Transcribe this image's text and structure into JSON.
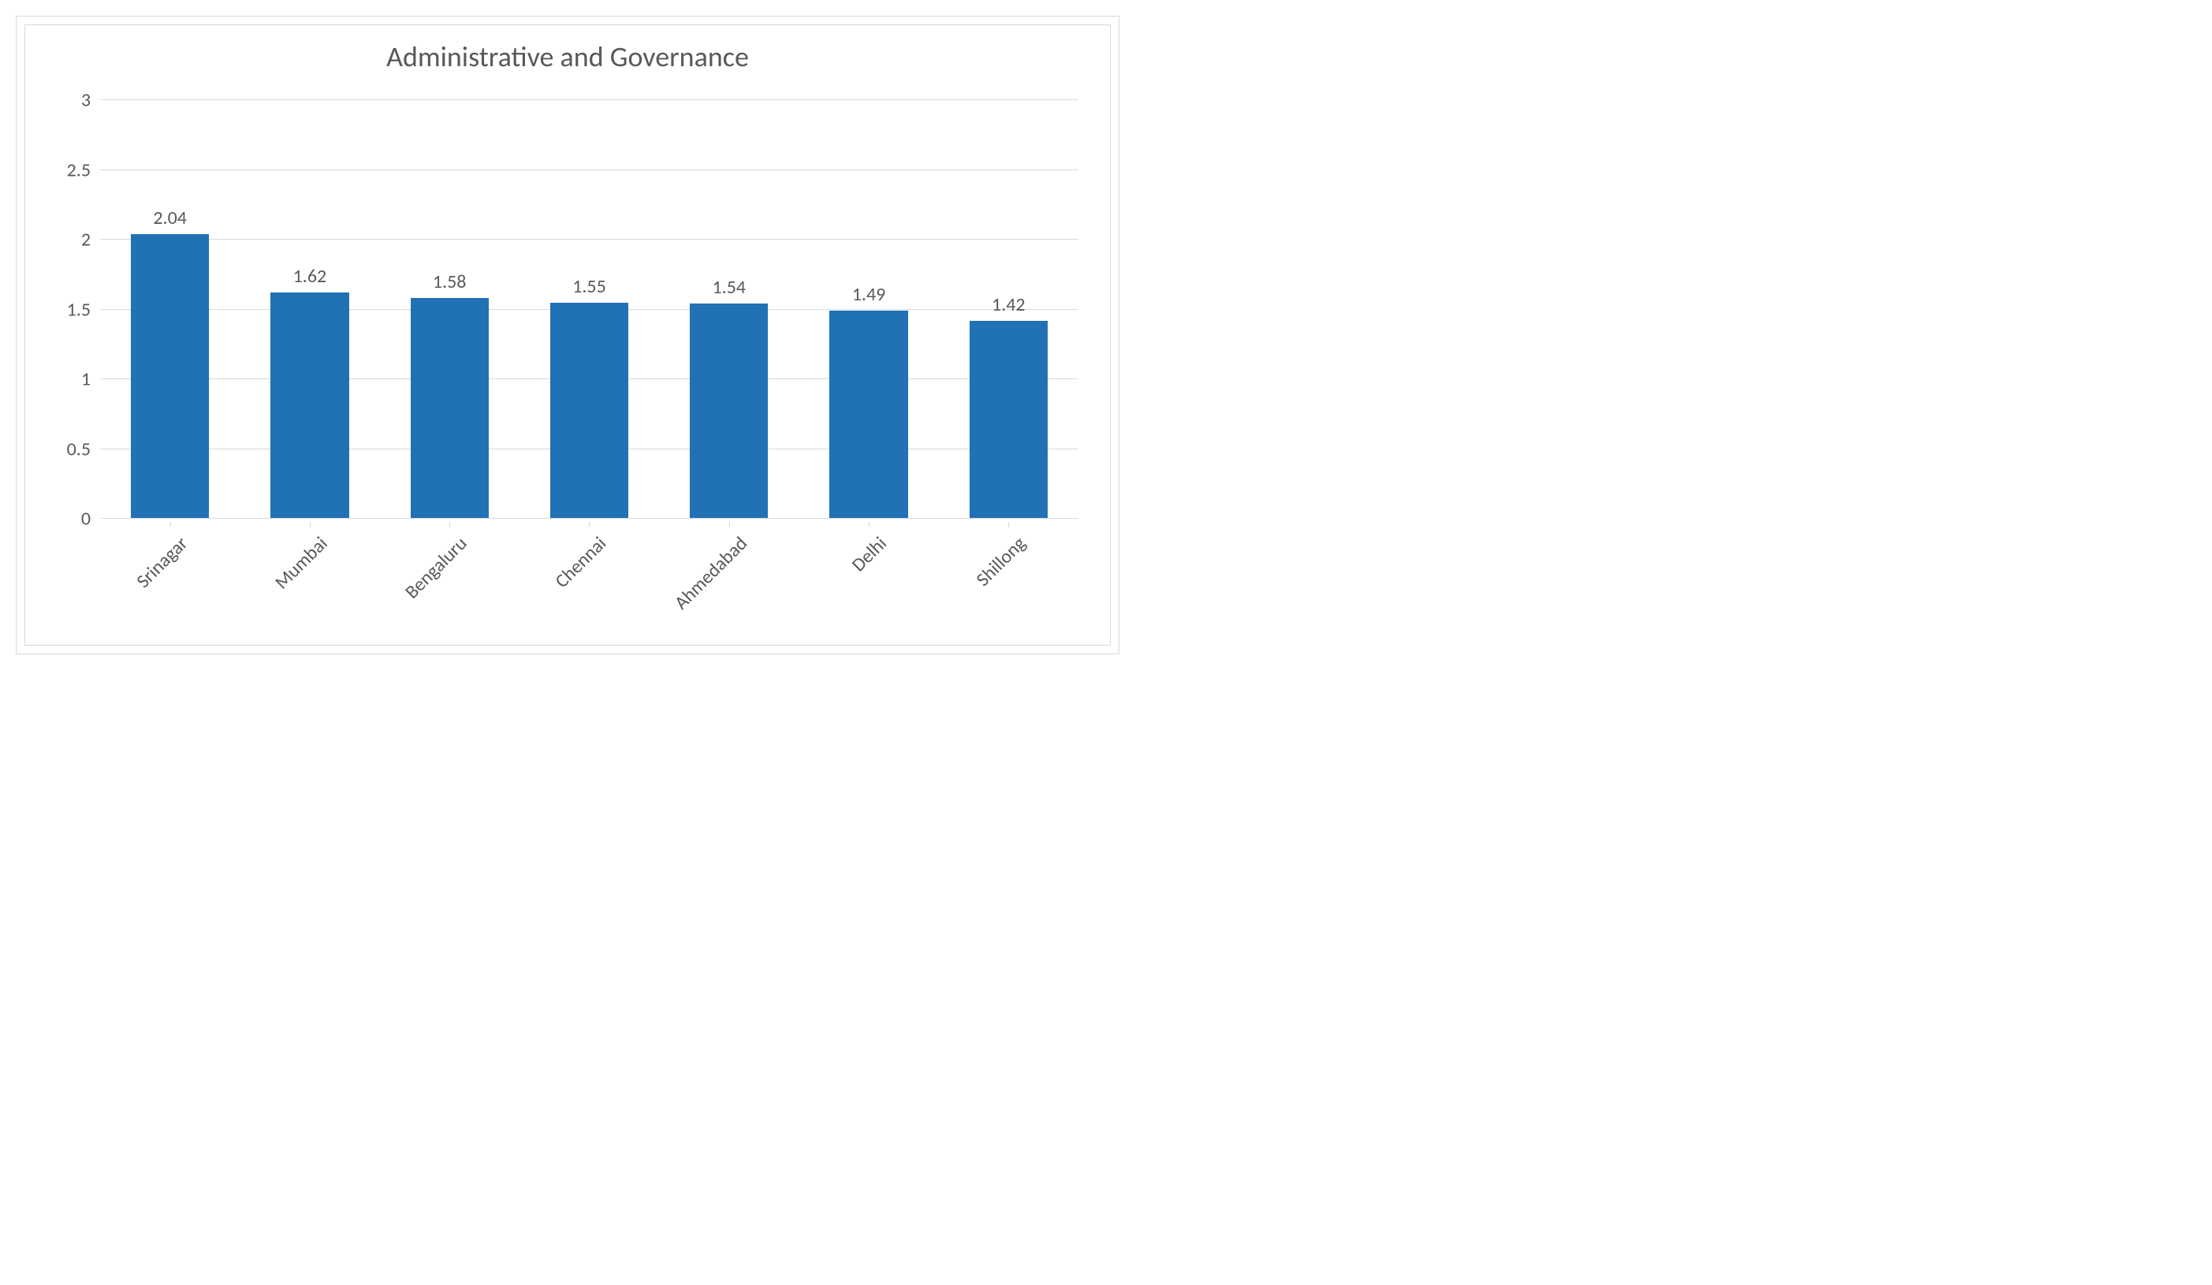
{
  "chart": {
    "type": "bar",
    "title": "Administrative and Governance",
    "title_fontsize": 36,
    "title_color": "#595959",
    "categories": [
      "Srinagar",
      "Mumbai",
      "Bengaluru",
      "Chennai",
      "Ahmedabad",
      "Delhi",
      "Shillong"
    ],
    "values": [
      2.04,
      1.62,
      1.58,
      1.55,
      1.54,
      1.49,
      1.42
    ],
    "bar_color": "#2171b5",
    "ylim": [
      0,
      3
    ],
    "ytick_step": 0.5,
    "yticks": [
      "0",
      "0.5",
      "1",
      "1.5",
      "2",
      "2.5",
      "3"
    ],
    "axis_label_fontsize": 24,
    "data_label_fontsize": 24,
    "label_color": "#595959",
    "background_color": "#ffffff",
    "border_color": "#d9d9d9",
    "grid_color": "#d9d9d9",
    "bar_width_ratio": 0.56,
    "x_label_rotation_deg": -45
  }
}
